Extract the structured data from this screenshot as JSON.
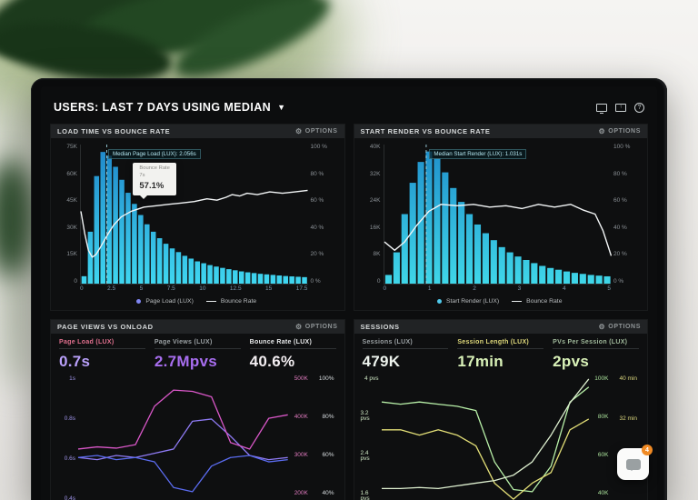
{
  "window": {
    "title": "USERS: LAST 7 DAYS USING MEDIAN"
  },
  "icons": {
    "chevron_glyph": "▼",
    "gear_glyph": "⚙",
    "share_glyph": "↑",
    "help_glyph": "?"
  },
  "options_label": "OPTIONS",
  "panels": {
    "load_time": {
      "title": "LOAD TIME VS BOUNCE RATE",
      "median_label": "Median Page Load (LUX): 2.056s",
      "tooltip": {
        "title": "Bounce Rate",
        "time": "7s",
        "value": "57.1%"
      },
      "legend": [
        {
          "label": "Page Load (LUX)",
          "color": "#7f86f2"
        },
        {
          "label": "Bounce Rate",
          "color": "#e9edee"
        }
      ],
      "y_left": [
        "75K",
        "60K",
        "45K",
        "30K",
        "15K",
        "0"
      ],
      "y_right": [
        "100 %",
        "80 %",
        "60 %",
        "40 %",
        "20 %",
        "0 %"
      ],
      "x_ticks": [
        "0",
        "2.5",
        "5",
        "7.5",
        "10",
        "12.5",
        "15",
        "17.5"
      ]
    },
    "start_render": {
      "title": "START RENDER VS BOUNCE RATE",
      "median_label": "Median Start Render (LUX): 1.031s",
      "legend": [
        {
          "label": "Start Render (LUX)",
          "color": "#4fc8ea"
        },
        {
          "label": "Bounce Rate",
          "color": "#e9edee"
        }
      ],
      "y_left": [
        "40K",
        "32K",
        "24K",
        "16K",
        "8K",
        "0"
      ],
      "y_right": [
        "100 %",
        "80 %",
        "60 %",
        "40 %",
        "20 %",
        "0 %"
      ],
      "x_ticks": [
        "0",
        "1",
        "2",
        "3",
        "4",
        "5"
      ]
    },
    "page_views": {
      "title": "PAGE VIEWS VS ONLOAD",
      "metrics": [
        {
          "label": "Page Load (LUX)",
          "value": "0.7s",
          "label_color": "#e0708e",
          "value_color": "#b9a0fa"
        },
        {
          "label": "Page Views (LUX)",
          "value": "2.7Mpvs",
          "label_color": "#9aa0a3",
          "value_color": "#a86ef0"
        },
        {
          "label": "Bounce Rate (LUX)",
          "value": "40.6%",
          "label_color": "#e7e9ea",
          "value_color": "#f3eef1"
        }
      ],
      "y_left": [
        "1s",
        "0.8s",
        "0.6s",
        "0.4s"
      ],
      "y_left_color": "#9d92e8",
      "y_right_k": [
        "500K",
        "400K",
        "300K",
        "200K"
      ],
      "y_right_k_color": "#e07bbf",
      "y_right_pct": [
        "100%",
        "80%",
        "60%",
        "40%"
      ],
      "y_right_pct_color": "#d8dde0"
    },
    "sessions": {
      "title": "SESSIONS",
      "metrics": [
        {
          "label": "Sessions (LUX)",
          "value": "479K",
          "label_color": "#9aa0a3",
          "value_color": "#eef4ee"
        },
        {
          "label": "Session Length (LUX)",
          "value": "17min",
          "label_color": "#ded87a",
          "value_color": "#d9f2b8"
        },
        {
          "label": "PVs Per Session (LUX)",
          "value": "2pvs",
          "label_color": "#9fb89a",
          "value_color": "#d9f2b8"
        }
      ],
      "y_left": [
        "4 pvs",
        "3.2 pvs",
        "2.4 pvs",
        "1.6 pvs"
      ],
      "y_left_color": "#cfe8c4",
      "y_right_k": [
        "100K",
        "80K",
        "60K",
        "40K"
      ],
      "y_right_k_color": "#a9e09a",
      "y_right_min": [
        "40 min",
        "32 min",
        "24 min",
        ""
      ],
      "y_right_min_color": "#ddd87e"
    }
  },
  "chat_widget": {
    "badge": "4"
  },
  "chart_data": [
    {
      "id": "load_time_hist",
      "type": "bar",
      "title": "Load Time vs Bounce Rate",
      "bar_series": "Page Load (LUX)",
      "line_series": "Bounce Rate",
      "x_range": [
        0,
        18
      ],
      "x_ticks": [
        "0",
        "2.5",
        "5",
        "7.5",
        "10",
        "12.5",
        "15",
        "17.5"
      ],
      "ylim_left": [
        0,
        75
      ],
      "y_left_unit": "K",
      "ylim_right": [
        0,
        100
      ],
      "y_right_unit": "%",
      "bar_color": "#3fd6f0",
      "bar_color2": "#1f86c9",
      "line_color": "#f2f5f6",
      "median": {
        "label": "Median Page Load (LUX): 2.056s",
        "x": 2.056
      },
      "bar_values": [
        4,
        28,
        58,
        71,
        69,
        63,
        56,
        49,
        43,
        37,
        32,
        28,
        24.5,
        21.5,
        19,
        17,
        15,
        13.5,
        12,
        11,
        10,
        9.2,
        8.5,
        7.8,
        7.2,
        6.6,
        6.1,
        5.7,
        5.3,
        5,
        4.7,
        4.4,
        4.1,
        3.9,
        3.7,
        3.5
      ],
      "line_points": [
        [
          0,
          52
        ],
        [
          0.3,
          36
        ],
        [
          0.6,
          24
        ],
        [
          0.9,
          19
        ],
        [
          1.2,
          21
        ],
        [
          1.6,
          27
        ],
        [
          2.1,
          35
        ],
        [
          2.6,
          42
        ],
        [
          3.2,
          48
        ],
        [
          4,
          52
        ],
        [
          5,
          55
        ],
        [
          6,
          56
        ],
        [
          7,
          57.1
        ],
        [
          8,
          58
        ],
        [
          9,
          59
        ],
        [
          10,
          61
        ],
        [
          10.8,
          60
        ],
        [
          11.5,
          62
        ],
        [
          12,
          64
        ],
        [
          12.6,
          63
        ],
        [
          13.2,
          65
        ],
        [
          14,
          64
        ],
        [
          15,
          66
        ],
        [
          16,
          65
        ],
        [
          17,
          66
        ],
        [
          18,
          67
        ]
      ]
    },
    {
      "id": "start_render_hist",
      "type": "bar",
      "title": "Start Render vs Bounce Rate",
      "bar_series": "Start Render (LUX)",
      "line_series": "Bounce Rate",
      "x_range": [
        0,
        5.6
      ],
      "x_ticks": [
        "0",
        "1",
        "2",
        "3",
        "4",
        "5"
      ],
      "ylim_left": [
        0,
        40
      ],
      "y_left_unit": "K",
      "ylim_right": [
        0,
        100
      ],
      "y_right_unit": "%",
      "bar_color": "#3fd6e8",
      "bar_color2": "#1f8ecb",
      "line_color": "#f2f5f6",
      "median": {
        "label": "Median Start Render (LUX): 1.031s",
        "x": 1.031
      },
      "bar_values": [
        2.5,
        9,
        20,
        29,
        35,
        38,
        36,
        32,
        27.5,
        23.5,
        20,
        17,
        14.5,
        12.5,
        10.5,
        9,
        7.8,
        6.8,
        5.9,
        5.1,
        4.5,
        4,
        3.5,
        3.1,
        2.8,
        2.5,
        2.3,
        2.1
      ],
      "line_points": [
        [
          0,
          30
        ],
        [
          0.25,
          24
        ],
        [
          0.5,
          30
        ],
        [
          0.8,
          42
        ],
        [
          1.1,
          52
        ],
        [
          1.4,
          57
        ],
        [
          1.8,
          56
        ],
        [
          2.2,
          57
        ],
        [
          2.6,
          55
        ],
        [
          3,
          56
        ],
        [
          3.4,
          54
        ],
        [
          3.8,
          57
        ],
        [
          4.2,
          55
        ],
        [
          4.6,
          57
        ],
        [
          4.9,
          53
        ],
        [
          5.2,
          50
        ],
        [
          5.4,
          38
        ],
        [
          5.6,
          20
        ]
      ]
    },
    {
      "id": "page_views_lines",
      "type": "line",
      "title": "Page Views vs Onload",
      "series": [
        {
          "name": "Page Load (LUX)",
          "color": "#8f7bf5",
          "unit": "s",
          "range": [
            0.4,
            1.0
          ],
          "values": [
            0.62,
            0.61,
            0.63,
            0.62,
            0.64,
            0.66,
            0.79,
            0.8,
            0.72,
            0.63,
            0.61,
            0.62
          ]
        },
        {
          "name": "Page Views (LUX)",
          "color": "#d957c8",
          "unit": "K",
          "range": [
            200,
            500
          ],
          "values": [
            330,
            335,
            332,
            340,
            430,
            468,
            465,
            452,
            345,
            330,
            402,
            410
          ]
        },
        {
          "name": "Bounce Rate (LUX)",
          "color": "#5b6cf0",
          "unit": "%",
          "range": [
            40,
            100
          ],
          "values": [
            62,
            63,
            61,
            62,
            60,
            48,
            46,
            58,
            62,
            63,
            60,
            61
          ]
        }
      ]
    },
    {
      "id": "sessions_lines",
      "type": "line",
      "title": "Sessions",
      "series": [
        {
          "name": "Sessions (LUX)",
          "color": "#b8f0a8",
          "unit": "K",
          "range": [
            40,
            100
          ],
          "values": [
            88,
            87,
            88,
            87,
            86,
            84,
            60,
            47,
            46,
            58,
            88,
            95
          ]
        },
        {
          "name": "Session Length (LUX)",
          "color": "#e3df77",
          "unit": "min",
          "range": [
            16,
            40
          ],
          "values": [
            30,
            30,
            29,
            30,
            29,
            27,
            20,
            17,
            20,
            22,
            30,
            32
          ]
        },
        {
          "name": "PVs Per Session (LUX)",
          "color": "#def0d0",
          "unit": "pvs",
          "range": [
            1.6,
            4
          ],
          "values": [
            1.9,
            1.9,
            1.92,
            1.9,
            1.95,
            2.0,
            2.05,
            2.15,
            2.4,
            2.9,
            3.5,
            3.95
          ]
        }
      ]
    }
  ]
}
